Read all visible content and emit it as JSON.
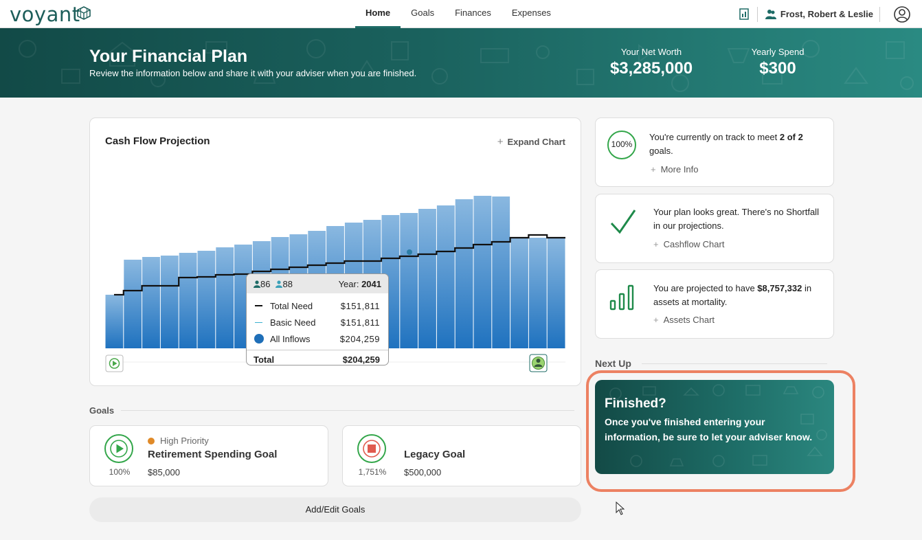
{
  "app": {
    "logo_text": "voyant"
  },
  "nav": {
    "items": [
      "Home",
      "Goals",
      "Finances",
      "Expenses"
    ],
    "active": "Home"
  },
  "user": {
    "name": "Frost, Robert & Leslie"
  },
  "banner": {
    "title": "Your Financial Plan",
    "subtitle": "Review the information below and share it with your adviser when you are finished.",
    "net_worth_label": "Your Net Worth",
    "net_worth_value": "$3,285,000",
    "yearly_spend_label": "Yearly Spend",
    "yearly_spend_value": "$300"
  },
  "cashflow": {
    "title": "Cash Flow Projection",
    "expand_label": "Expand Chart",
    "tooltip": {
      "person1_age": "86",
      "person2_age": "88",
      "year_label": "Year:",
      "year_value": "2041",
      "rows": [
        {
          "label": "Total Need",
          "value": "$151,811"
        },
        {
          "label": "Basic Need",
          "value": "$151,811"
        },
        {
          "label": "All Inflows",
          "value": "$204,259"
        }
      ],
      "total_label": "Total",
      "total_value": "$204,259"
    }
  },
  "chart_data": {
    "type": "bar",
    "title": "Cash Flow Projection",
    "series": [
      {
        "name": "All Inflows",
        "values": [
          78,
          129,
          133,
          135,
          139,
          142,
          147,
          151,
          156,
          162,
          166,
          171,
          178,
          183,
          187,
          194,
          197,
          203,
          208,
          217,
          222,
          221,
          161,
          161,
          161
        ]
      },
      {
        "name": "Total Need",
        "values": [
          78,
          84,
          91,
          91,
          103,
          104,
          107,
          108,
          112,
          115,
          118,
          121,
          124,
          127,
          127,
          131,
          134,
          137,
          141,
          146,
          151,
          155,
          161,
          165,
          161
        ]
      }
    ],
    "grid": false,
    "legend": "none"
  },
  "goals": {
    "section_label": "Goals",
    "items": [
      {
        "name": "Retirement Spending Goal",
        "amount": "$85,000",
        "percent": "100%",
        "priority": "High Priority",
        "icon": "play-icon"
      },
      {
        "name": "Legacy Goal",
        "amount": "$500,000",
        "percent": "1,751%",
        "icon": "stop-icon"
      }
    ],
    "add_edit_label": "Add/Edit Goals"
  },
  "status_cards": {
    "on_track": {
      "badge": "100%",
      "text_prefix": "You're currently on track to meet ",
      "text_bold": "2 of 2",
      "text_suffix": " goals.",
      "link": "More Info"
    },
    "no_shortfall": {
      "text": "Your plan looks great. There's no Shortfall in our projections.",
      "link": "Cashflow Chart"
    },
    "assets": {
      "text_prefix": "You are projected to have ",
      "text_bold": "$8,757,332",
      "text_suffix": " in assets at mortality.",
      "link": "Assets Chart"
    }
  },
  "next_up": {
    "label": "Next Up",
    "title": "Finished?",
    "body": "Once you've finished entering your information, be sure to let your adviser know."
  },
  "colors": {
    "brand": "#1d5e5a",
    "accent_green": "#33a64a",
    "highlight": "#ec8162",
    "bar_top": "#8ab8e0",
    "bar_bottom": "#1f72bf"
  }
}
